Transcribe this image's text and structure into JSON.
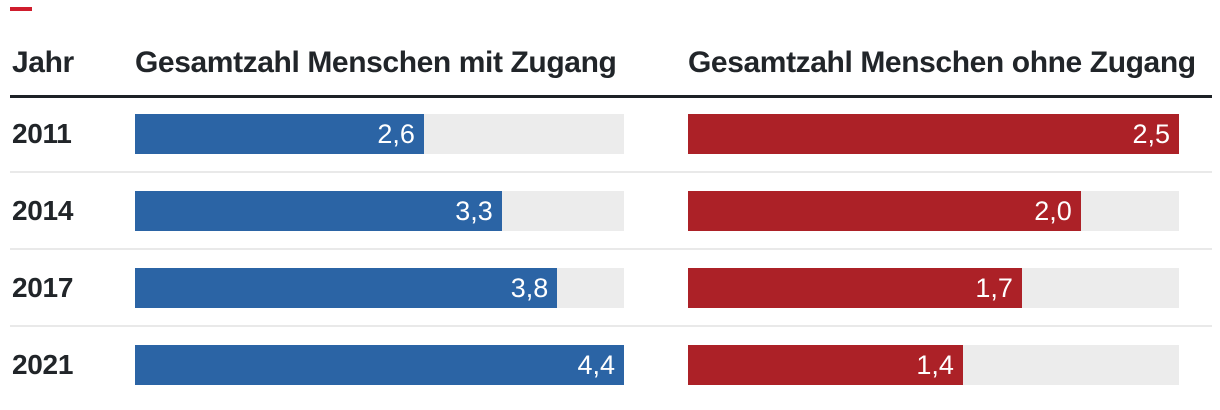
{
  "accent": {
    "dash_color": "#cf1d2d"
  },
  "colors": {
    "with_bar": "#2b64a5",
    "without_bar": "#ac2127",
    "track": "#ececec",
    "header_rule": "#1d2126",
    "divider": "#e9e9e9",
    "text": "#212529",
    "value_text": "#ffffff"
  },
  "table": {
    "col_year": "Jahr",
    "col_with": "Gesamtzahl Menschen mit Zugang",
    "col_without": "Gesamtzahl Menschen ohne Zugang",
    "rows": [
      {
        "year": "2011",
        "with_label": "2,6",
        "without_label": "2,5"
      },
      {
        "year": "2014",
        "with_label": "3,3",
        "without_label": "2,0"
      },
      {
        "year": "2017",
        "with_label": "3,8",
        "without_label": "1,7"
      },
      {
        "year": "2021",
        "with_label": "4,4",
        "without_label": "1,4"
      }
    ]
  },
  "chart_data": {
    "type": "bar",
    "orientation": "horizontal",
    "categories": [
      "2011",
      "2014",
      "2017",
      "2021"
    ],
    "series": [
      {
        "name": "Gesamtzahl Menschen mit Zugang",
        "values": [
          2.6,
          3.3,
          3.8,
          4.4
        ],
        "axis_max": 4.4,
        "color": "#2b64a5"
      },
      {
        "name": "Gesamtzahl Menschen ohne Zugang",
        "values": [
          2.5,
          2.0,
          1.7,
          1.4
        ],
        "axis_max": 2.5,
        "color": "#ac2127"
      }
    ],
    "value_labels": [
      [
        "2,6",
        "3,3",
        "3,8",
        "4,4"
      ],
      [
        "2,5",
        "2,0",
        "1,7",
        "1,4"
      ]
    ],
    "xlabel": "Jahr",
    "decimal_format": "comma",
    "grid": false,
    "legend_position": "column-headers"
  }
}
